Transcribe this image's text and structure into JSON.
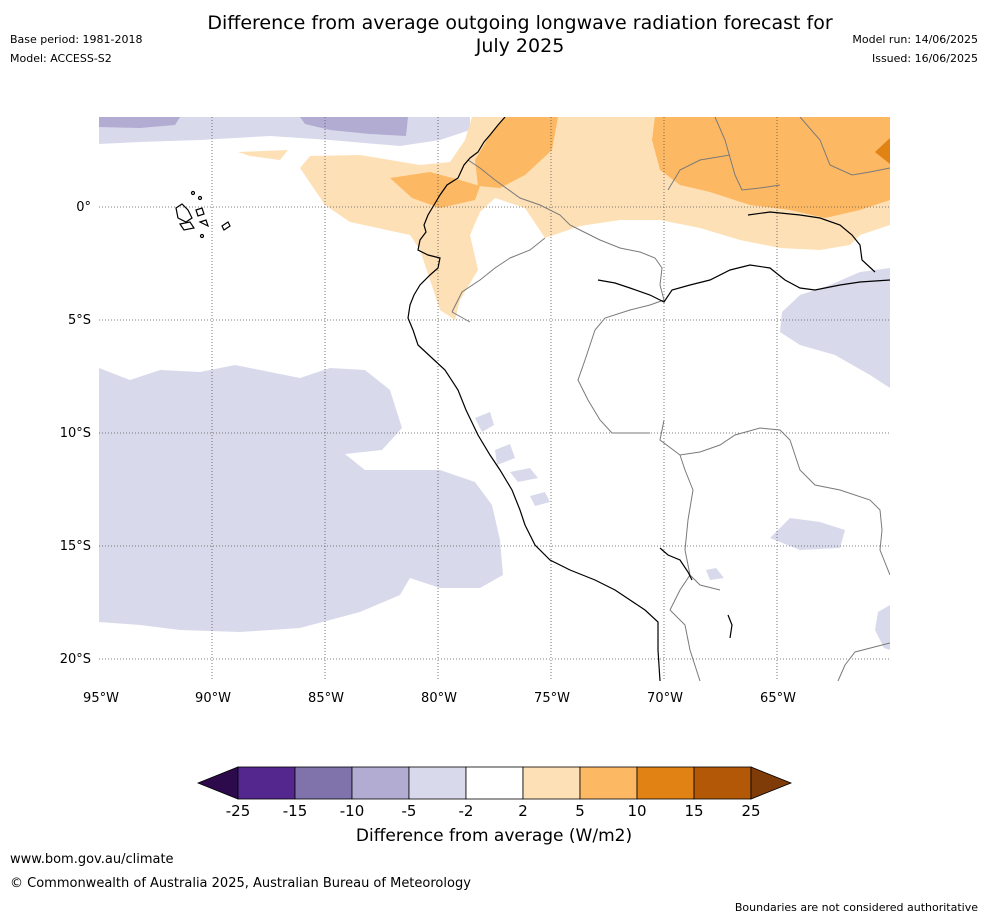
{
  "header": {
    "title_line1": "Difference from average outgoing longwave radiation forecast for",
    "title_line2": "July 2025",
    "base_period": "Base period: 1981-2018",
    "model": "Model: ACCESS-S2",
    "model_run": "Model run: 14/06/2025",
    "issued": "Issued: 16/06/2025"
  },
  "map": {
    "lat_labels": [
      "0°",
      "5°S",
      "10°S",
      "15°S",
      "20°S"
    ],
    "lon_labels": [
      "95°W",
      "90°W",
      "85°W",
      "80°W",
      "75°W",
      "70°W",
      "65°W"
    ],
    "extent": {
      "lon_min": -95,
      "lon_max": -60,
      "lat_min": -21,
      "lat_max": 4
    }
  },
  "colorbar": {
    "ticks": [
      "-25",
      "-15",
      "-10",
      "-5",
      "-2",
      "2",
      "5",
      "10",
      "15",
      "25"
    ],
    "colors": [
      "#2d0a4b",
      "#54278f",
      "#8073ac",
      "#b2abd2",
      "#d8daeb",
      "#ffffff",
      "#fee0b6",
      "#fdb863",
      "#e08214",
      "#b35806",
      "#7f3b08"
    ],
    "label": "Difference from average (W/m2)"
  },
  "footer": {
    "url": "www.bom.gov.au/climate",
    "copyright": "© Commonwealth of Australia 2025, Australian Bureau of Meteorology",
    "disclaimer": "Boundaries are not considered authoritative"
  }
}
